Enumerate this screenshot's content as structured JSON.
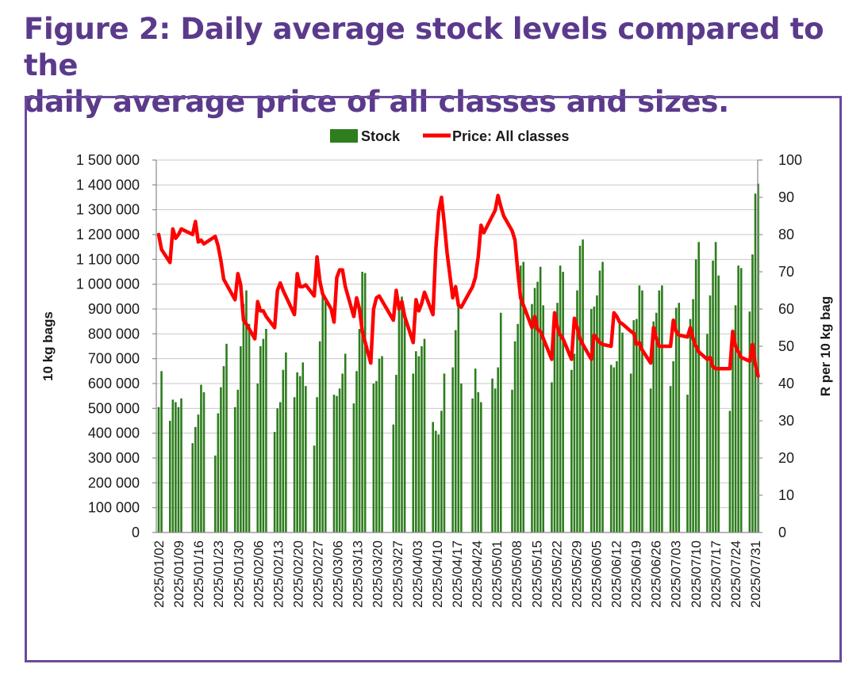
{
  "figure": {
    "title_line1": "Figure 2: Daily average stock levels compared to the",
    "title_line2": "daily average price of all classes and sizes."
  },
  "colors": {
    "title": "#5b3a8c",
    "frame": "#6a4a9c",
    "stock": "#2e7d1e",
    "price": "#ff0000",
    "grid": "#c8c8c8"
  },
  "chart_data": {
    "type": "bar",
    "title": "",
    "legend": {
      "position": "top",
      "items": [
        "Stock",
        "Price: All classes"
      ]
    },
    "ylabel": "10 kg bags",
    "y2label": "R per 10 kg bag",
    "ylim": [
      0,
      1500000
    ],
    "y2lim": [
      0,
      100
    ],
    "y_ticks": [
      0,
      100000,
      200000,
      300000,
      400000,
      500000,
      600000,
      700000,
      800000,
      900000,
      1000000,
      1100000,
      1200000,
      1300000,
      1400000,
      1500000
    ],
    "y_tick_labels": [
      "0",
      "100 000",
      "200 000",
      "300 000",
      "400 000",
      "500 000",
      "600 000",
      "700 000",
      "800 000",
      "900 000",
      "1 000 000",
      "1 100 000",
      "1 200 000",
      "1 300 000",
      "1 400 000",
      "1 500 000"
    ],
    "y2_ticks": [
      0,
      10,
      20,
      30,
      40,
      50,
      60,
      70,
      80,
      90,
      100
    ],
    "y2_tick_labels": [
      "0",
      "10",
      "20",
      "30",
      "40",
      "50",
      "60",
      "70",
      "80",
      "90",
      "100"
    ],
    "grid": true,
    "x_tick_labels": [
      "2025/01/02",
      "2025/01/09",
      "2025/01/16",
      "2025/01/23",
      "2025/01/30",
      "2025/02/06",
      "2025/02/13",
      "2025/02/20",
      "2025/02/27",
      "2025/03/06",
      "2025/03/13",
      "2025/03/20",
      "2025/03/27",
      "2025/04/03",
      "2025/04/10",
      "2025/04/17",
      "2025/04/24",
      "2025/05/01",
      "2025/05/08",
      "2025/05/15",
      "2025/05/22",
      "2025/05/29",
      "2025/06/05",
      "2025/06/12",
      "2025/06/19",
      "2025/06/26",
      "2025/07/03",
      "2025/07/10",
      "2025/07/17",
      "2025/07/24",
      "2025/07/31"
    ],
    "days_span": 211,
    "series": [
      {
        "name": "Stock",
        "type": "bar",
        "axis": "left",
        "points": [
          [
            0,
            505000
          ],
          [
            1,
            650000
          ],
          [
            4,
            450000
          ],
          [
            5,
            535000
          ],
          [
            6,
            525000
          ],
          [
            7,
            505000
          ],
          [
            8,
            540000
          ],
          [
            12,
            360000
          ],
          [
            13,
            425000
          ],
          [
            14,
            475000
          ],
          [
            15,
            595000
          ],
          [
            16,
            565000
          ],
          [
            20,
            310000
          ],
          [
            21,
            480000
          ],
          [
            22,
            585000
          ],
          [
            23,
            670000
          ],
          [
            24,
            760000
          ],
          [
            27,
            505000
          ],
          [
            28,
            575000
          ],
          [
            29,
            750000
          ],
          [
            30,
            920000
          ],
          [
            31,
            975000
          ],
          [
            32,
            840000
          ],
          [
            35,
            600000
          ],
          [
            36,
            750000
          ],
          [
            37,
            780000
          ],
          [
            38,
            820000
          ],
          [
            41,
            405000
          ],
          [
            42,
            500000
          ],
          [
            43,
            525000
          ],
          [
            44,
            655000
          ],
          [
            45,
            725000
          ],
          [
            48,
            545000
          ],
          [
            49,
            645000
          ],
          [
            50,
            630000
          ],
          [
            51,
            685000
          ],
          [
            52,
            590000
          ],
          [
            55,
            350000
          ],
          [
            56,
            545000
          ],
          [
            57,
            770000
          ],
          [
            58,
            960000
          ],
          [
            59,
            930000
          ],
          [
            62,
            555000
          ],
          [
            63,
            550000
          ],
          [
            64,
            580000
          ],
          [
            65,
            640000
          ],
          [
            66,
            720000
          ],
          [
            69,
            520000
          ],
          [
            70,
            650000
          ],
          [
            71,
            820000
          ],
          [
            72,
            1050000
          ],
          [
            73,
            1045000
          ],
          [
            76,
            600000
          ],
          [
            77,
            610000
          ],
          [
            78,
            700000
          ],
          [
            79,
            710000
          ],
          [
            83,
            435000
          ],
          [
            84,
            635000
          ],
          [
            85,
            900000
          ],
          [
            86,
            950000
          ],
          [
            87,
            860000
          ],
          [
            90,
            640000
          ],
          [
            91,
            730000
          ],
          [
            92,
            710000
          ],
          [
            93,
            750000
          ],
          [
            94,
            780000
          ],
          [
            97,
            445000
          ],
          [
            98,
            410000
          ],
          [
            99,
            395000
          ],
          [
            100,
            490000
          ],
          [
            101,
            640000
          ],
          [
            104,
            665000
          ],
          [
            105,
            815000
          ],
          [
            106,
            935000
          ],
          [
            107,
            600000
          ],
          [
            111,
            540000
          ],
          [
            112,
            660000
          ],
          [
            113,
            565000
          ],
          [
            114,
            525000
          ],
          [
            118,
            620000
          ],
          [
            119,
            580000
          ],
          [
            120,
            665000
          ],
          [
            121,
            885000
          ],
          [
            125,
            575000
          ],
          [
            126,
            770000
          ],
          [
            127,
            840000
          ],
          [
            128,
            1075000
          ],
          [
            129,
            1090000
          ],
          [
            132,
            920000
          ],
          [
            133,
            985000
          ],
          [
            134,
            1010000
          ],
          [
            135,
            1070000
          ],
          [
            136,
            915000
          ],
          [
            139,
            605000
          ],
          [
            140,
            820000
          ],
          [
            141,
            925000
          ],
          [
            142,
            1075000
          ],
          [
            143,
            1050000
          ],
          [
            146,
            655000
          ],
          [
            147,
            720000
          ],
          [
            148,
            975000
          ],
          [
            149,
            1155000
          ],
          [
            150,
            1180000
          ],
          [
            153,
            900000
          ],
          [
            154,
            910000
          ],
          [
            155,
            955000
          ],
          [
            156,
            1055000
          ],
          [
            157,
            1090000
          ],
          [
            160,
            675000
          ],
          [
            161,
            665000
          ],
          [
            162,
            690000
          ],
          [
            163,
            845000
          ],
          [
            164,
            805000
          ],
          [
            167,
            640000
          ],
          [
            168,
            855000
          ],
          [
            169,
            860000
          ],
          [
            170,
            995000
          ],
          [
            171,
            975000
          ],
          [
            174,
            580000
          ],
          [
            175,
            850000
          ],
          [
            176,
            885000
          ],
          [
            177,
            975000
          ],
          [
            178,
            995000
          ],
          [
            181,
            590000
          ],
          [
            182,
            690000
          ],
          [
            183,
            905000
          ],
          [
            184,
            925000
          ],
          [
            187,
            555000
          ],
          [
            188,
            860000
          ],
          [
            189,
            940000
          ],
          [
            190,
            1100000
          ],
          [
            191,
            1170000
          ],
          [
            194,
            800000
          ],
          [
            195,
            955000
          ],
          [
            196,
            1095000
          ],
          [
            197,
            1170000
          ],
          [
            198,
            1035000
          ],
          [
            202,
            490000
          ],
          [
            203,
            810000
          ],
          [
            204,
            915000
          ],
          [
            205,
            1075000
          ],
          [
            206,
            1065000
          ],
          [
            209,
            890000
          ],
          [
            210,
            1120000
          ],
          [
            211,
            1365000
          ],
          [
            212,
            1405000
          ]
        ]
      },
      {
        "name": "Price: All classes",
        "type": "line",
        "axis": "right",
        "points": [
          [
            0,
            80
          ],
          [
            1,
            76
          ],
          [
            4,
            72.5
          ],
          [
            5,
            81.5
          ],
          [
            6,
            79
          ],
          [
            7,
            80
          ],
          [
            8,
            81.5
          ],
          [
            12,
            80
          ],
          [
            13,
            83.5
          ],
          [
            14,
            78
          ],
          [
            15,
            78.5
          ],
          [
            16,
            77.5
          ],
          [
            20,
            79.5
          ],
          [
            21,
            77
          ],
          [
            22,
            73
          ],
          [
            23,
            68
          ],
          [
            27,
            62.5
          ],
          [
            28,
            69.5
          ],
          [
            29,
            66.5
          ],
          [
            30,
            57
          ],
          [
            31,
            56
          ],
          [
            34,
            52
          ],
          [
            35,
            62
          ],
          [
            36,
            59.5
          ],
          [
            37,
            59.5
          ],
          [
            38,
            58
          ],
          [
            41,
            55
          ],
          [
            42,
            65
          ],
          [
            43,
            67
          ],
          [
            44,
            65
          ],
          [
            48,
            58.5
          ],
          [
            49,
            69.5
          ],
          [
            50,
            66
          ],
          [
            51,
            66
          ],
          [
            52,
            66.5
          ],
          [
            55,
            63.5
          ],
          [
            56,
            74
          ],
          [
            57,
            67.5
          ],
          [
            58,
            64
          ],
          [
            61,
            60
          ],
          [
            62,
            56.5
          ],
          [
            63,
            68.5
          ],
          [
            64,
            70.5
          ],
          [
            65,
            70.5
          ],
          [
            66,
            66
          ],
          [
            69,
            58
          ],
          [
            70,
            63
          ],
          [
            71,
            60
          ],
          [
            72,
            54
          ],
          [
            75,
            45.5
          ],
          [
            76,
            60
          ],
          [
            77,
            63
          ],
          [
            78,
            63.5
          ],
          [
            83,
            57
          ],
          [
            84,
            65
          ],
          [
            85,
            60
          ],
          [
            86,
            62
          ],
          [
            87,
            58
          ],
          [
            90,
            51
          ],
          [
            91,
            62.5
          ],
          [
            92,
            59.5
          ],
          [
            93,
            61.5
          ],
          [
            94,
            64.5
          ],
          [
            97,
            58.5
          ],
          [
            98,
            76
          ],
          [
            99,
            86
          ],
          [
            100,
            90
          ],
          [
            101,
            83
          ],
          [
            102,
            75
          ],
          [
            104,
            63
          ],
          [
            105,
            66
          ],
          [
            106,
            61
          ],
          [
            107,
            60.5
          ],
          [
            111,
            66
          ],
          [
            112,
            68.5
          ],
          [
            113,
            74
          ],
          [
            114,
            82.5
          ],
          [
            115,
            80.5
          ],
          [
            118,
            85
          ],
          [
            119,
            86.5
          ],
          [
            120,
            90.5
          ],
          [
            121,
            87.5
          ],
          [
            122,
            85
          ],
          [
            125,
            81
          ],
          [
            126,
            78.5
          ],
          [
            127,
            70
          ],
          [
            128,
            63
          ],
          [
            132,
            55
          ],
          [
            133,
            58
          ],
          [
            134,
            54.5
          ],
          [
            135,
            54
          ],
          [
            139,
            46.5
          ],
          [
            140,
            59
          ],
          [
            141,
            55
          ],
          [
            142,
            53
          ],
          [
            143,
            52
          ],
          [
            146,
            46.5
          ],
          [
            147,
            57.5
          ],
          [
            148,
            55
          ],
          [
            149,
            52
          ],
          [
            150,
            50.5
          ],
          [
            153,
            46.5
          ],
          [
            154,
            53
          ],
          [
            155,
            52
          ],
          [
            156,
            51
          ],
          [
            157,
            50.5
          ],
          [
            160,
            50
          ],
          [
            161,
            59
          ],
          [
            162,
            58
          ],
          [
            163,
            56.5
          ],
          [
            164,
            56
          ],
          [
            167,
            54
          ],
          [
            168,
            53.5
          ],
          [
            169,
            50.5
          ],
          [
            170,
            51
          ],
          [
            171,
            49
          ],
          [
            174,
            45.5
          ],
          [
            175,
            55
          ],
          [
            176,
            52
          ],
          [
            177,
            50
          ],
          [
            178,
            50
          ],
          [
            181,
            50
          ],
          [
            182,
            57
          ],
          [
            183,
            54
          ],
          [
            184,
            53
          ],
          [
            187,
            52.5
          ],
          [
            188,
            55
          ],
          [
            189,
            52
          ],
          [
            190,
            50
          ],
          [
            191,
            48.5
          ],
          [
            194,
            46.5
          ],
          [
            195,
            47
          ],
          [
            196,
            44.5
          ],
          [
            197,
            44
          ],
          [
            202,
            44
          ],
          [
            203,
            54
          ],
          [
            204,
            50
          ],
          [
            205,
            48.5
          ],
          [
            206,
            47
          ],
          [
            209,
            46
          ],
          [
            210,
            50.5
          ],
          [
            211,
            45
          ],
          [
            212,
            42
          ]
        ]
      }
    ]
  }
}
